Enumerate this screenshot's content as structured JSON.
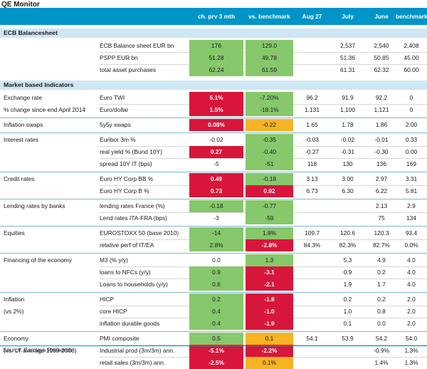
{
  "title": "QE Monitor",
  "colors": {
    "header": "#0095c8",
    "section": "#cfe6f4",
    "green": "#86c86b",
    "red": "#d8163b",
    "amber": "#f6b324"
  },
  "headers": [
    "ch. prv 3 mth",
    "vs. benchmark",
    "Aug 27",
    "July",
    "June",
    "benchmark"
  ],
  "sections": [
    {
      "name": "ECB Balancesheet",
      "groups": [
        {
          "label": "",
          "rows": [
            {
              "lbl": "",
              "ind": "ECB Balance sheet EUR bn",
              "c1": "176",
              "f1": "g",
              "c2": "129.0",
              "f2": "g",
              "c3": "",
              "c4": "2,537",
              "c5": "2,540",
              "c6": "2,408"
            },
            {
              "lbl": "",
              "ind": "PSPP EUR bn",
              "c1": "51.28",
              "f1": "g",
              "c2": "49.78",
              "f2": "g",
              "c3": "",
              "c4": "51.36",
              "c5": "50.85",
              "c6": "45.00"
            },
            {
              "lbl": "",
              "ind": "total asset purchases",
              "c1": "62.24",
              "f1": "g",
              "c2": "61.59",
              "f2": "g",
              "c3": "",
              "c4": "61.31",
              "c5": "62.32",
              "c6": "60.00"
            }
          ]
        }
      ]
    },
    {
      "name": "Market based Indicators",
      "groups": [
        {
          "rows": [
            {
              "lbl": "Exchange rate",
              "ind": "Euro TWI",
              "c1": "5.1%",
              "f1": "r",
              "c2": "-7.20%",
              "f2": "g",
              "c3": "96.2",
              "c4": "91.9",
              "c5": "92.2",
              "c6": "0"
            },
            {
              "lbl": "% change since end April 2014",
              "ind": "Euro/dollar",
              "c1": "1.5%",
              "f1": "r",
              "c2": "-18.1%",
              "f2": "g",
              "c3": "1,131",
              "c4": "1,100",
              "c5": "1,121",
              "c6": "0"
            }
          ]
        },
        {
          "rows": [
            {
              "lbl": "Inflation swaps",
              "ind": "5y5y swaps",
              "c1": "0.08%",
              "f1": "r",
              "c2": "-0.22",
              "f2": "a",
              "c3": "1.65",
              "c4": "1.78",
              "c5": "1.86",
              "c6": "2.00"
            }
          ]
        },
        {
          "rows": [
            {
              "lbl": "Interest rates",
              "ind": "Euribor 3m %",
              "c1": "-0.02",
              "f1": "",
              "c2": "-0.35",
              "f2": "g",
              "c3": "-0.03",
              "c4": "-0.02",
              "c5": "-0.01",
              "c6": "0.33"
            },
            {
              "lbl": "",
              "ind": "real yield % (Bund 10Y)",
              "c1": "0.27",
              "f1": "r",
              "c2": "-0.40",
              "f2": "g",
              "c3": "-0.27",
              "c4": "-0.31",
              "c5": "-0.30",
              "c6": "0.00"
            },
            {
              "lbl": "",
              "ind": "spread 10Y IT (bps)",
              "c1": "-5",
              "f1": "",
              "c2": "-51",
              "f2": "g",
              "c3": "118",
              "c4": "130",
              "c5": "136",
              "c6": "169"
            }
          ]
        },
        {
          "rows": [
            {
              "lbl": "Credit rates",
              "ind": "Euro HY  Corp BB %",
              "c1": "0.49",
              "f1": "r",
              "c2": "-0.18",
              "f2": "g",
              "c3": "3.13",
              "c4": "3.00",
              "c5": "2.97",
              "c6": "3.31"
            },
            {
              "lbl": "",
              "ind": "Euro HY  Corp B %",
              "c1": "0.73",
              "f1": "r",
              "c2": "0.92",
              "f2": "r",
              "c3": "6.73",
              "c4": "6.30",
              "c5": "6.22",
              "c6": "5.81"
            }
          ]
        },
        {
          "rows": [
            {
              "lbl": "Lending rates by banks",
              "ind": "lending rates France (%)",
              "c1": "-0.18",
              "f1": "g",
              "c2": "-0.77",
              "f2": "g",
              "c3": "",
              "c4": "",
              "c5": "2.13",
              "c6": "2.9"
            },
            {
              "lbl": "",
              "ind": "Lend rates ITA-FRA (bps)",
              "c1": "-3",
              "f1": "",
              "c2": "-59",
              "f2": "g",
              "c3": "",
              "c4": "",
              "c5": "75",
              "c6": "134"
            }
          ]
        },
        {
          "rows": [
            {
              "lbl": "Equities",
              "ind": "EUROSTOXX 50 (base 2010)",
              "c1": "-14",
              "f1": "g",
              "c2": "1.8%",
              "f2": "g",
              "c3": "109.7",
              "c4": "120.6",
              "c5": "120.3",
              "c6": "93.4"
            },
            {
              "lbl": "",
              "ind": "relative perf of IT/EA",
              "c1": "2.8%",
              "f1": "g",
              "c2": "-2.8%",
              "f2": "r",
              "c3": "84.3%",
              "c4": "82.3%",
              "c5": "82.7%",
              "c6": "0.0%"
            }
          ]
        },
        {
          "rows": [
            {
              "lbl": "Financing of the economy",
              "ind": "M3 (% y/y)",
              "c1": "0.0",
              "f1": "",
              "c2": "1.3",
              "f2": "g",
              "c3": "",
              "c4": "5.3",
              "c5": "4.9",
              "c6": "4.0"
            },
            {
              "lbl": "",
              "ind": "loans to NFCs (y/y)",
              "c1": "0.9",
              "f1": "g",
              "c2": "-3.1",
              "f2": "r",
              "c3": "",
              "c4": "0.9",
              "c5": "0.2",
              "c6": "4.0"
            },
            {
              "lbl": "",
              "ind": "Loans to households (y/y)",
              "c1": "0.6",
              "f1": "g",
              "c2": "-2.1",
              "f2": "r",
              "c3": "",
              "c4": "1.9",
              "c5": "1.7",
              "c6": "4.0"
            }
          ]
        },
        {
          "rows": [
            {
              "lbl": "Inflation",
              "ind": "HICP",
              "c1": "0.2",
              "f1": "g",
              "c2": "-1.8",
              "f2": "r",
              "c3": "",
              "c4": "0.2",
              "c5": "0.2",
              "c6": "2.0"
            },
            {
              "lbl": "(vs 2%)",
              "ind": "core HICP",
              "c1": "0.4",
              "f1": "g",
              "c2": "-1.0",
              "f2": "r",
              "c3": "",
              "c4": "1.0",
              "c5": "0.8",
              "c6": "2.0"
            },
            {
              "lbl": "",
              "ind": "inflation durable goods",
              "c1": "0.4",
              "f1": "g",
              "c2": "-1.9",
              "f2": "r",
              "c3": "",
              "c4": "0.1",
              "c5": "0.0",
              "c6": "2.0"
            }
          ]
        },
        {
          "rows": [
            {
              "lbl": "Economy",
              "ind": "PMI composite",
              "c1": "0.5",
              "f1": "g",
              "c2": "0.1",
              "f2": "a",
              "c3": "54.1",
              "c4": "53.9",
              "c5": "54.2",
              "c6": "54.0"
            },
            {
              "lbl": "(vs. LT average 1999-2008)",
              "ind": "Industrial prod (3m/3m) ann.",
              "c1": "-5.1%",
              "f1": "r",
              "c2": "-2.2%",
              "f2": "r",
              "c3": "",
              "c4": "",
              "c5": "-0.9%",
              "c6": "1.3%"
            },
            {
              "lbl": "",
              "ind": "retail sales (3m/3m) ann.",
              "c1": "-2.5%",
              "f1": "r",
              "c2": "0.1%",
              "f2": "a",
              "c3": "",
              "c4": "",
              "c5": "1.4%",
              "c6": "1.3%"
            }
          ]
        }
      ]
    }
  ],
  "footer": "Source: Barclays Research"
}
